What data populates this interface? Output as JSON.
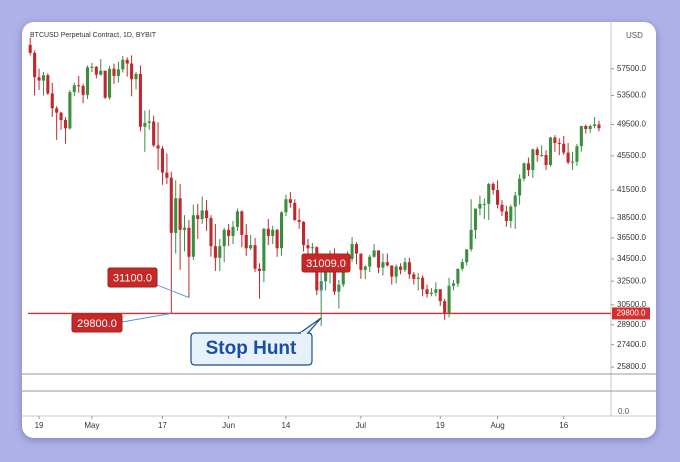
{
  "chart_data": {
    "type": "candlestick",
    "title": "BTCUSD Perpetual Contract, 1D, BYBIT",
    "currency": "USD",
    "log_scale": true,
    "up_color": "#3b8e3f",
    "down_color": "#c0282d",
    "ylim": [
      25600,
      63800
    ],
    "yticks": [
      {
        "value": 57500,
        "label": "57500.0"
      },
      {
        "value": 53500,
        "label": "53500.0"
      },
      {
        "value": 49500,
        "label": "49500.0"
      },
      {
        "value": 45500,
        "label": "45500.0"
      },
      {
        "value": 41500,
        "label": "41500.0"
      },
      {
        "value": 38500,
        "label": "38500.0"
      },
      {
        "value": 36500,
        "label": "36500.0"
      },
      {
        "value": 34500,
        "label": "34500.0"
      },
      {
        "value": 32500,
        "label": "32500.0"
      },
      {
        "value": 30500,
        "label": "30500.0"
      },
      {
        "value": 28900,
        "label": "28900.0"
      },
      {
        "value": 27400,
        "label": "27400.0"
      },
      {
        "value": 25800,
        "label": "25800.0"
      }
    ],
    "xlim": [
      -0.5,
      131.5
    ],
    "xticks": [
      {
        "value": 2,
        "label": "19"
      },
      {
        "value": 14,
        "label": "May"
      },
      {
        "value": 30,
        "label": "17"
      },
      {
        "value": 45,
        "label": "Jun"
      },
      {
        "value": 58,
        "label": "14"
      },
      {
        "value": 75,
        "label": "Jul"
      },
      {
        "value": 93,
        "label": "19"
      },
      {
        "value": 106,
        "label": "Aug"
      },
      {
        "value": 121,
        "label": "16"
      }
    ],
    "hline": {
      "value": 29800,
      "label": "29800.0",
      "color": "#d32f2f"
    },
    "annotations": [
      {
        "label": "31100.0",
        "value": 31100,
        "x": 36
      },
      {
        "label": "29800.0",
        "value": 29800,
        "x": 32
      },
      {
        "label": "31009.0",
        "value": 31009,
        "x": 66
      }
    ],
    "callout": "Stop Hunt",
    "lower_pane_label": "0.0",
    "candles": [
      [
        61300,
        62500,
        59600,
        60000
      ],
      [
        60000,
        60400,
        53500,
        56200
      ],
      [
        56200,
        57500,
        54300,
        55700
      ],
      [
        55700,
        57000,
        53500,
        56500
      ],
      [
        56500,
        56800,
        53600,
        53800
      ],
      [
        53800,
        55400,
        50500,
        51700
      ],
      [
        51700,
        52000,
        47500,
        51100
      ],
      [
        51100,
        51200,
        48800,
        50100
      ],
      [
        50100,
        50500,
        47000,
        49000
      ],
      [
        49000,
        54300,
        48800,
        54000
      ],
      [
        54000,
        55400,
        53400,
        55000
      ],
      [
        55000,
        56400,
        53900,
        54900
      ],
      [
        54900,
        55200,
        52400,
        53600
      ],
      [
        53600,
        58000,
        53000,
        57700
      ],
      [
        57700,
        58400,
        57000,
        57800
      ],
      [
        57800,
        57900,
        56000,
        56600
      ],
      [
        56600,
        59000,
        56400,
        57200
      ],
      [
        57200,
        57200,
        53000,
        53200
      ],
      [
        53200,
        57900,
        52900,
        57500
      ],
      [
        57500,
        58300,
        55200,
        56400
      ],
      [
        56400,
        58600,
        55400,
        57400
      ],
      [
        57400,
        59500,
        56900,
        58900
      ],
      [
        58900,
        59300,
        56300,
        58300
      ],
      [
        58300,
        59600,
        53400,
        55900
      ],
      [
        55900,
        57000,
        54400,
        56700
      ],
      [
        56700,
        58000,
        48600,
        49200
      ],
      [
        49200,
        51400,
        46000,
        49700
      ],
      [
        49700,
        51500,
        48800,
        49900
      ],
      [
        49900,
        50700,
        46600,
        46800
      ],
      [
        46800,
        49800,
        43800,
        46400
      ],
      [
        46400,
        46700,
        42100,
        43500
      ],
      [
        43500,
        45800,
        42200,
        42900
      ],
      [
        42900,
        43600,
        29800,
        37000
      ],
      [
        37000,
        42600,
        35000,
        40600
      ],
      [
        40600,
        42200,
        33500,
        37300
      ],
      [
        37300,
        38800,
        35200,
        37500
      ],
      [
        37500,
        38300,
        31100,
        34700
      ],
      [
        34700,
        39900,
        34400,
        38800
      ],
      [
        38800,
        40000,
        36400,
        38400
      ],
      [
        38400,
        40800,
        37900,
        39300
      ],
      [
        39300,
        40400,
        37200,
        38500
      ],
      [
        38500,
        38800,
        34700,
        35700
      ],
      [
        35700,
        37900,
        33400,
        34600
      ],
      [
        34600,
        36400,
        33400,
        35700
      ],
      [
        35700,
        37500,
        34200,
        37300
      ],
      [
        37300,
        37900,
        35700,
        36700
      ],
      [
        36700,
        38200,
        35900,
        37600
      ],
      [
        37600,
        39500,
        37200,
        39200
      ],
      [
        39200,
        39300,
        35600,
        36800
      ],
      [
        36800,
        37900,
        34800,
        35500
      ],
      [
        35500,
        36800,
        35300,
        35800
      ],
      [
        35800,
        36500,
        33300,
        33600
      ],
      [
        33600,
        34100,
        31000,
        33400
      ],
      [
        33400,
        37500,
        32400,
        37400
      ],
      [
        37400,
        38400,
        35800,
        36700
      ],
      [
        36700,
        37700,
        35900,
        37300
      ],
      [
        37300,
        37400,
        34700,
        35500
      ],
      [
        35500,
        39200,
        34800,
        39100
      ],
      [
        39100,
        41000,
        38700,
        40500
      ],
      [
        40500,
        41300,
        39600,
        40100
      ],
      [
        40100,
        40500,
        38200,
        38300
      ],
      [
        38300,
        39500,
        37400,
        38100
      ],
      [
        38100,
        38200,
        35200,
        35800
      ],
      [
        35800,
        36400,
        34900,
        35500
      ],
      [
        35500,
        36000,
        33400,
        35600
      ],
      [
        35600,
        35700,
        31300,
        31700
      ],
      [
        31700,
        33300,
        28800,
        32500
      ],
      [
        32500,
        34800,
        31700,
        33700
      ],
      [
        33700,
        35300,
        32300,
        34700
      ],
      [
        34700,
        35500,
        31300,
        31600
      ],
      [
        31600,
        32600,
        30200,
        32200
      ],
      [
        32200,
        34700,
        32000,
        34700
      ],
      [
        34700,
        35200,
        33900,
        34500
      ],
      [
        34500,
        36600,
        34200,
        35900
      ],
      [
        35900,
        36100,
        34000,
        35000
      ],
      [
        35000,
        35000,
        32700,
        33500
      ],
      [
        33500,
        33900,
        32700,
        33800
      ],
      [
        33800,
        34900,
        33300,
        34700
      ],
      [
        34700,
        35900,
        34600,
        35300
      ],
      [
        35300,
        35300,
        33200,
        33700
      ],
      [
        33700,
        35000,
        33000,
        34200
      ],
      [
        34200,
        35000,
        33800,
        33900
      ],
      [
        33900,
        33900,
        32200,
        32900
      ],
      [
        32900,
        34000,
        32300,
        33800
      ],
      [
        33800,
        34100,
        33100,
        33500
      ],
      [
        33500,
        34600,
        33300,
        34200
      ],
      [
        34200,
        34600,
        32700,
        33100
      ],
      [
        33100,
        33300,
        32200,
        32700
      ],
      [
        32700,
        33200,
        31700,
        32800
      ],
      [
        32800,
        33000,
        31200,
        31800
      ],
      [
        31800,
        32200,
        31100,
        31400
      ],
      [
        31400,
        31900,
        31200,
        31500
      ],
      [
        31500,
        32400,
        31200,
        31800
      ],
      [
        31800,
        31800,
        30400,
        30800
      ],
      [
        30800,
        31000,
        29300,
        29800
      ],
      [
        29800,
        32800,
        29500,
        32100
      ],
      [
        32100,
        32600,
        31700,
        32300
      ],
      [
        32300,
        33600,
        32000,
        33600
      ],
      [
        33600,
        34500,
        33400,
        34200
      ],
      [
        34200,
        35400,
        33900,
        35400
      ],
      [
        35400,
        40500,
        35200,
        37300
      ],
      [
        37300,
        39500,
        36400,
        39500
      ],
      [
        39500,
        40900,
        38800,
        40000
      ],
      [
        40000,
        40600,
        38400,
        40000
      ],
      [
        40000,
        42300,
        38300,
        42200
      ],
      [
        42200,
        42400,
        41000,
        41500
      ],
      [
        41500,
        42600,
        39500,
        39900
      ],
      [
        39900,
        40400,
        38700,
        39200
      ],
      [
        39200,
        39800,
        37600,
        38200
      ],
      [
        38200,
        39900,
        37500,
        39700
      ],
      [
        39700,
        41300,
        37400,
        40900
      ],
      [
        40900,
        43300,
        39900,
        42800
      ],
      [
        42800,
        44700,
        42500,
        44600
      ],
      [
        44600,
        45300,
        43100,
        43800
      ],
      [
        43800,
        46400,
        42900,
        46300
      ],
      [
        46300,
        46600,
        44800,
        45600
      ],
      [
        45600,
        46800,
        45400,
        45600
      ],
      [
        45600,
        46200,
        43800,
        44400
      ],
      [
        44400,
        47900,
        44200,
        47800
      ],
      [
        47800,
        48100,
        46000,
        47100
      ],
      [
        47100,
        47700,
        45600,
        47000
      ],
      [
        47000,
        48000,
        45600,
        45900
      ],
      [
        45900,
        47100,
        44500,
        44700
      ],
      [
        44700,
        46000,
        43800,
        44800
      ],
      [
        44800,
        47000,
        44300,
        46700
      ],
      [
        46700,
        49300,
        46000,
        49300
      ],
      [
        49300,
        49500,
        48300,
        48900
      ],
      [
        48900,
        49500,
        48400,
        49300
      ],
      [
        49300,
        50500,
        49000,
        49500
      ],
      [
        49500,
        50000,
        48600,
        49000
      ]
    ]
  }
}
